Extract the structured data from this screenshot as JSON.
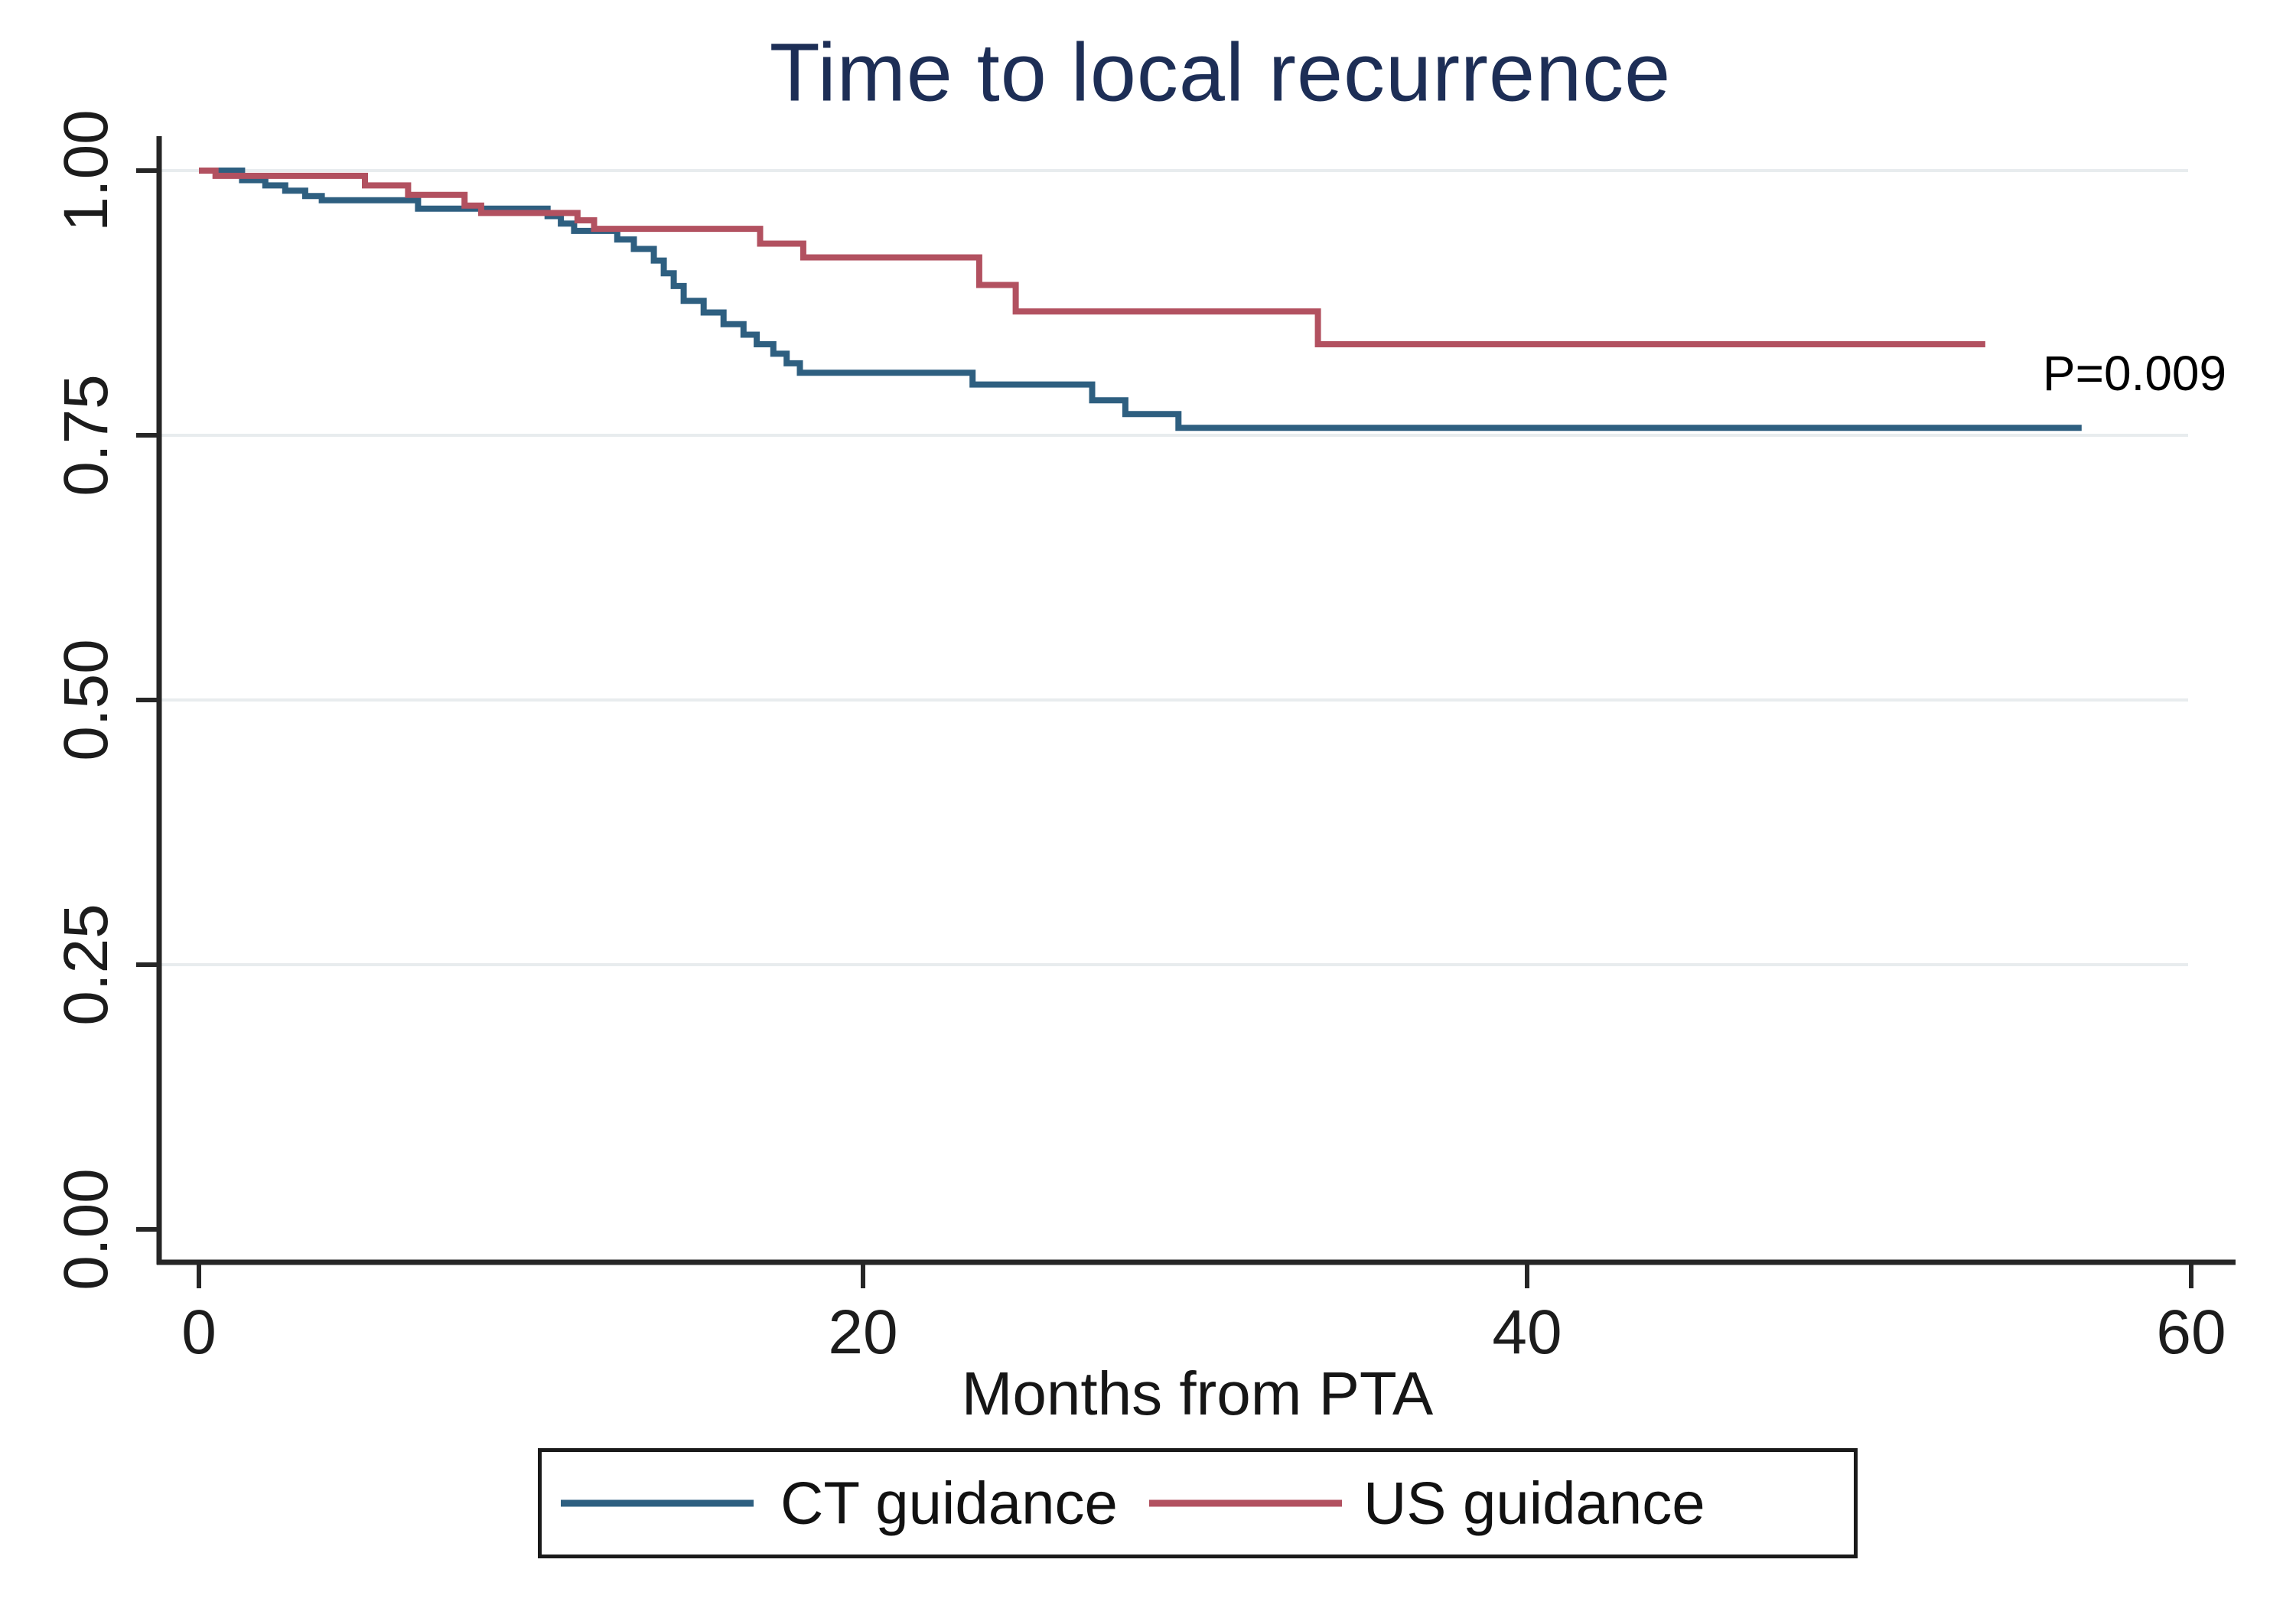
{
  "figure": {
    "title": "Time to local recurrence",
    "x_axis_label": "Months from PTA",
    "p_value_annotation": "P=0.009"
  },
  "legend": {
    "items": [
      {
        "label": "CT guidance",
        "color": "#2e5f80"
      },
      {
        "label": "US guidance",
        "color": "#b25160"
      }
    ]
  },
  "colors": {
    "title_text": "#1d2e56",
    "axis_line": "#262626",
    "gridline": "#e8ecee",
    "label_text": "#1c1c1c",
    "ct_curve": "#2e5f80",
    "us_curve": "#b25160"
  },
  "chart_data": {
    "type": "line",
    "subtype": "kaplan-meier-step",
    "title": "Time to local recurrence",
    "xlabel": "Months from PTA",
    "ylabel": "",
    "xlim": [
      0,
      60
    ],
    "ylim": [
      0.0,
      1.0
    ],
    "x_ticks": [
      0,
      20,
      40,
      60
    ],
    "y_ticks": [
      {
        "label": "0.00",
        "value": 0.0
      },
      {
        "label": "0.25",
        "value": 0.25
      },
      {
        "label": "0.50",
        "value": 0.5
      },
      {
        "label": "0.75",
        "value": 0.75
      },
      {
        "label": "1.00",
        "value": 1.0
      }
    ],
    "grid": "horizontal-at-y-ticks-except-0",
    "legend_position": "bottom-box",
    "annotation": {
      "text": "P=0.009",
      "x_months": 58.2,
      "y_survival": 0.81
    },
    "series": [
      {
        "name": "CT guidance",
        "color": "#2e5f80",
        "points": [
          [
            0,
            1.0
          ],
          [
            1.3,
            0.991
          ],
          [
            2.0,
            0.986
          ],
          [
            2.6,
            0.981
          ],
          [
            3.2,
            0.976
          ],
          [
            3.7,
            0.972
          ],
          [
            6.6,
            0.964
          ],
          [
            10.5,
            0.957
          ],
          [
            10.9,
            0.95
          ],
          [
            11.3,
            0.943
          ],
          [
            12.6,
            0.935
          ],
          [
            13.1,
            0.926
          ],
          [
            13.7,
            0.915
          ],
          [
            14.0,
            0.903
          ],
          [
            14.3,
            0.891
          ],
          [
            14.6,
            0.877
          ],
          [
            15.2,
            0.866
          ],
          [
            15.8,
            0.855
          ],
          [
            16.4,
            0.845
          ],
          [
            16.8,
            0.836
          ],
          [
            17.3,
            0.827
          ],
          [
            17.7,
            0.818
          ],
          [
            18.1,
            0.809
          ],
          [
            23.3,
            0.798
          ],
          [
            26.9,
            0.783
          ],
          [
            27.9,
            0.77
          ],
          [
            29.5,
            0.757
          ],
          [
            56.7,
            0.757
          ]
        ]
      },
      {
        "name": "US guidance",
        "color": "#b25160",
        "points": [
          [
            0,
            1.0
          ],
          [
            0.5,
            0.995
          ],
          [
            5.0,
            0.986
          ],
          [
            6.3,
            0.977
          ],
          [
            8.0,
            0.967
          ],
          [
            8.5,
            0.96
          ],
          [
            11.4,
            0.953
          ],
          [
            11.9,
            0.945
          ],
          [
            16.9,
            0.931
          ],
          [
            18.2,
            0.918
          ],
          [
            23.5,
            0.892
          ],
          [
            24.6,
            0.867
          ],
          [
            33.7,
            0.836
          ],
          [
            53.8,
            0.836
          ]
        ]
      }
    ]
  }
}
